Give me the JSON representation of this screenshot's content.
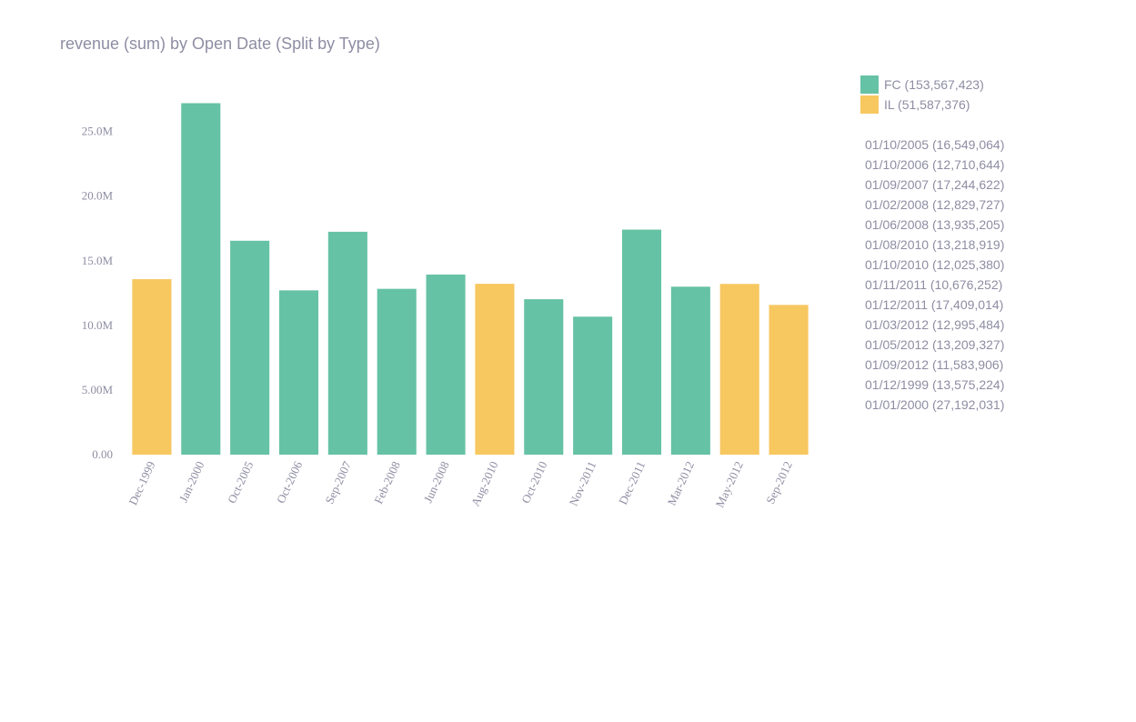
{
  "colors": {
    "FC": "#66c2a5",
    "IL": "#f7c760"
  },
  "legend": [
    {
      "label": "FC (153,567,423)",
      "color": "#66c2a5"
    },
    {
      "label": "IL (51,587,376)",
      "color": "#f7c760"
    }
  ],
  "date_list": [
    "01/10/2005 (16,549,064)",
    "01/10/2006 (12,710,644)",
    "01/09/2007 (17,244,622)",
    "01/02/2008 (12,829,727)",
    "01/06/2008 (13,935,205)",
    "01/08/2010 (13,218,919)",
    "01/10/2010 (12,025,380)",
    "01/11/2011 (10,676,252)",
    "01/12/2011 (17,409,014)",
    "01/03/2012 (12,995,484)",
    "01/05/2012 (13,209,327)",
    "01/09/2012 (11,583,906)",
    "01/12/1999 (13,575,224)",
    "01/01/2000 (27,192,031)"
  ],
  "chart_data": {
    "type": "bar",
    "title": "revenue (sum) by Open Date (Split by Type)",
    "xlabel": "",
    "ylabel": "",
    "ylim": [
      0,
      28000000
    ],
    "yticks": [
      0,
      5000000,
      10000000,
      15000000,
      20000000,
      25000000
    ],
    "ytick_labels": [
      "0.00",
      "5.00M",
      "10.0M",
      "15.0M",
      "20.0M",
      "25.0M"
    ],
    "categories": [
      "Dec-1999",
      "Jan-2000",
      "Oct-2005",
      "Oct-2006",
      "Sep-2007",
      "Feb-2008",
      "Jun-2008",
      "Aug-2010",
      "Oct-2010",
      "Nov-2011",
      "Dec-2011",
      "Mar-2012",
      "May-2012",
      "Sep-2012"
    ],
    "series": [
      {
        "name": "FC",
        "values": [
          null,
          27192031,
          16549064,
          12710644,
          17244622,
          12829727,
          13935205,
          null,
          12025380,
          10676252,
          17409014,
          12995484,
          null,
          null
        ]
      },
      {
        "name": "IL",
        "values": [
          13575224,
          null,
          null,
          null,
          null,
          null,
          null,
          13218919,
          null,
          null,
          null,
          null,
          13209327,
          11583906
        ]
      }
    ],
    "grid": false,
    "legend_position": "top-right"
  }
}
